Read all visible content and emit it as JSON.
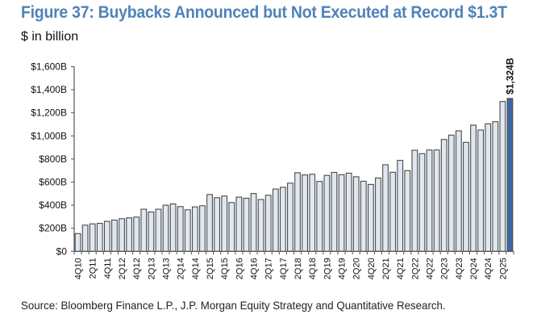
{
  "header": {
    "title": "Figure 37: Buybacks Announced but Not Executed at Record $1.3T",
    "subtitle": "$ in billion"
  },
  "footer": {
    "source": "Source: Bloomberg Finance L.P., J.P. Morgan Equity Strategy and Quantitative Research."
  },
  "colors": {
    "title": "#4f83b8",
    "bar_fill": "#dfe7f1",
    "bar_border": "#4a4a4a",
    "highlight_fill": "#3d68a6",
    "axis": "#555555"
  },
  "chart_data": {
    "type": "bar",
    "title": "Figure 37: Buybacks Announced but Not Executed at Record $1.3T",
    "subtitle": "$ in billion",
    "xlabel": "",
    "ylabel": "",
    "ylim": [
      0,
      1600
    ],
    "yticks": [
      0,
      200,
      400,
      600,
      800,
      1000,
      1200,
      1400,
      1600
    ],
    "ytick_labels": [
      "$0",
      "$200B",
      "$400B",
      "$600B",
      "$800B",
      "$1,000B",
      "$1,200B",
      "$1,400B",
      "$1,600B"
    ],
    "grid": false,
    "legend": "none",
    "categories": [
      "4Q10",
      "1Q11",
      "2Q11",
      "3Q11",
      "4Q11",
      "1Q12",
      "2Q12",
      "3Q12",
      "4Q12",
      "1Q13",
      "2Q13",
      "3Q13",
      "4Q13",
      "1Q14",
      "2Q14",
      "3Q14",
      "4Q14",
      "1Q15",
      "2Q15",
      "3Q15",
      "4Q15",
      "1Q16",
      "2Q16",
      "3Q16",
      "4Q16",
      "1Q17",
      "2Q17",
      "3Q17",
      "4Q17",
      "1Q18",
      "2Q18",
      "3Q18",
      "4Q18",
      "1Q19",
      "2Q19",
      "3Q19",
      "4Q19",
      "1Q20",
      "2Q20",
      "3Q20",
      "4Q20",
      "1Q21",
      "2Q21",
      "3Q21",
      "4Q21",
      "1Q22",
      "2Q22",
      "3Q22",
      "4Q22",
      "1Q23",
      "2Q23",
      "3Q23",
      "4Q23",
      "1Q24",
      "2Q24",
      "3Q24",
      "4Q24",
      "1Q25",
      "2Q25",
      "3Q25"
    ],
    "xtick_labels": [
      "4Q10",
      "2Q11",
      "4Q11",
      "2Q12",
      "4Q12",
      "2Q13",
      "4Q13",
      "2Q14",
      "4Q14",
      "2Q15",
      "4Q15",
      "2Q16",
      "4Q16",
      "2Q17",
      "4Q17",
      "2Q18",
      "4Q18",
      "2Q19",
      "4Q19",
      "2Q20",
      "4Q20",
      "2Q21",
      "4Q21",
      "2Q22",
      "4Q22",
      "2Q23",
      "4Q23",
      "2Q24",
      "4Q24",
      "2Q25"
    ],
    "xtick_every": 2,
    "values": [
      154,
      227,
      238,
      243,
      260,
      271,
      283,
      290,
      297,
      365,
      341,
      365,
      400,
      411,
      388,
      360,
      385,
      395,
      492,
      465,
      479,
      423,
      470,
      460,
      501,
      449,
      486,
      540,
      555,
      591,
      681,
      662,
      668,
      606,
      658,
      684,
      664,
      677,
      646,
      607,
      580,
      635,
      750,
      685,
      788,
      699,
      876,
      846,
      878,
      878,
      969,
      1007,
      1044,
      944,
      1093,
      1051,
      1105,
      1123,
      1298,
      1324
    ],
    "highlight_index": 59,
    "annotations": [
      {
        "category": "3Q25",
        "text": "$1,324B"
      }
    ]
  }
}
